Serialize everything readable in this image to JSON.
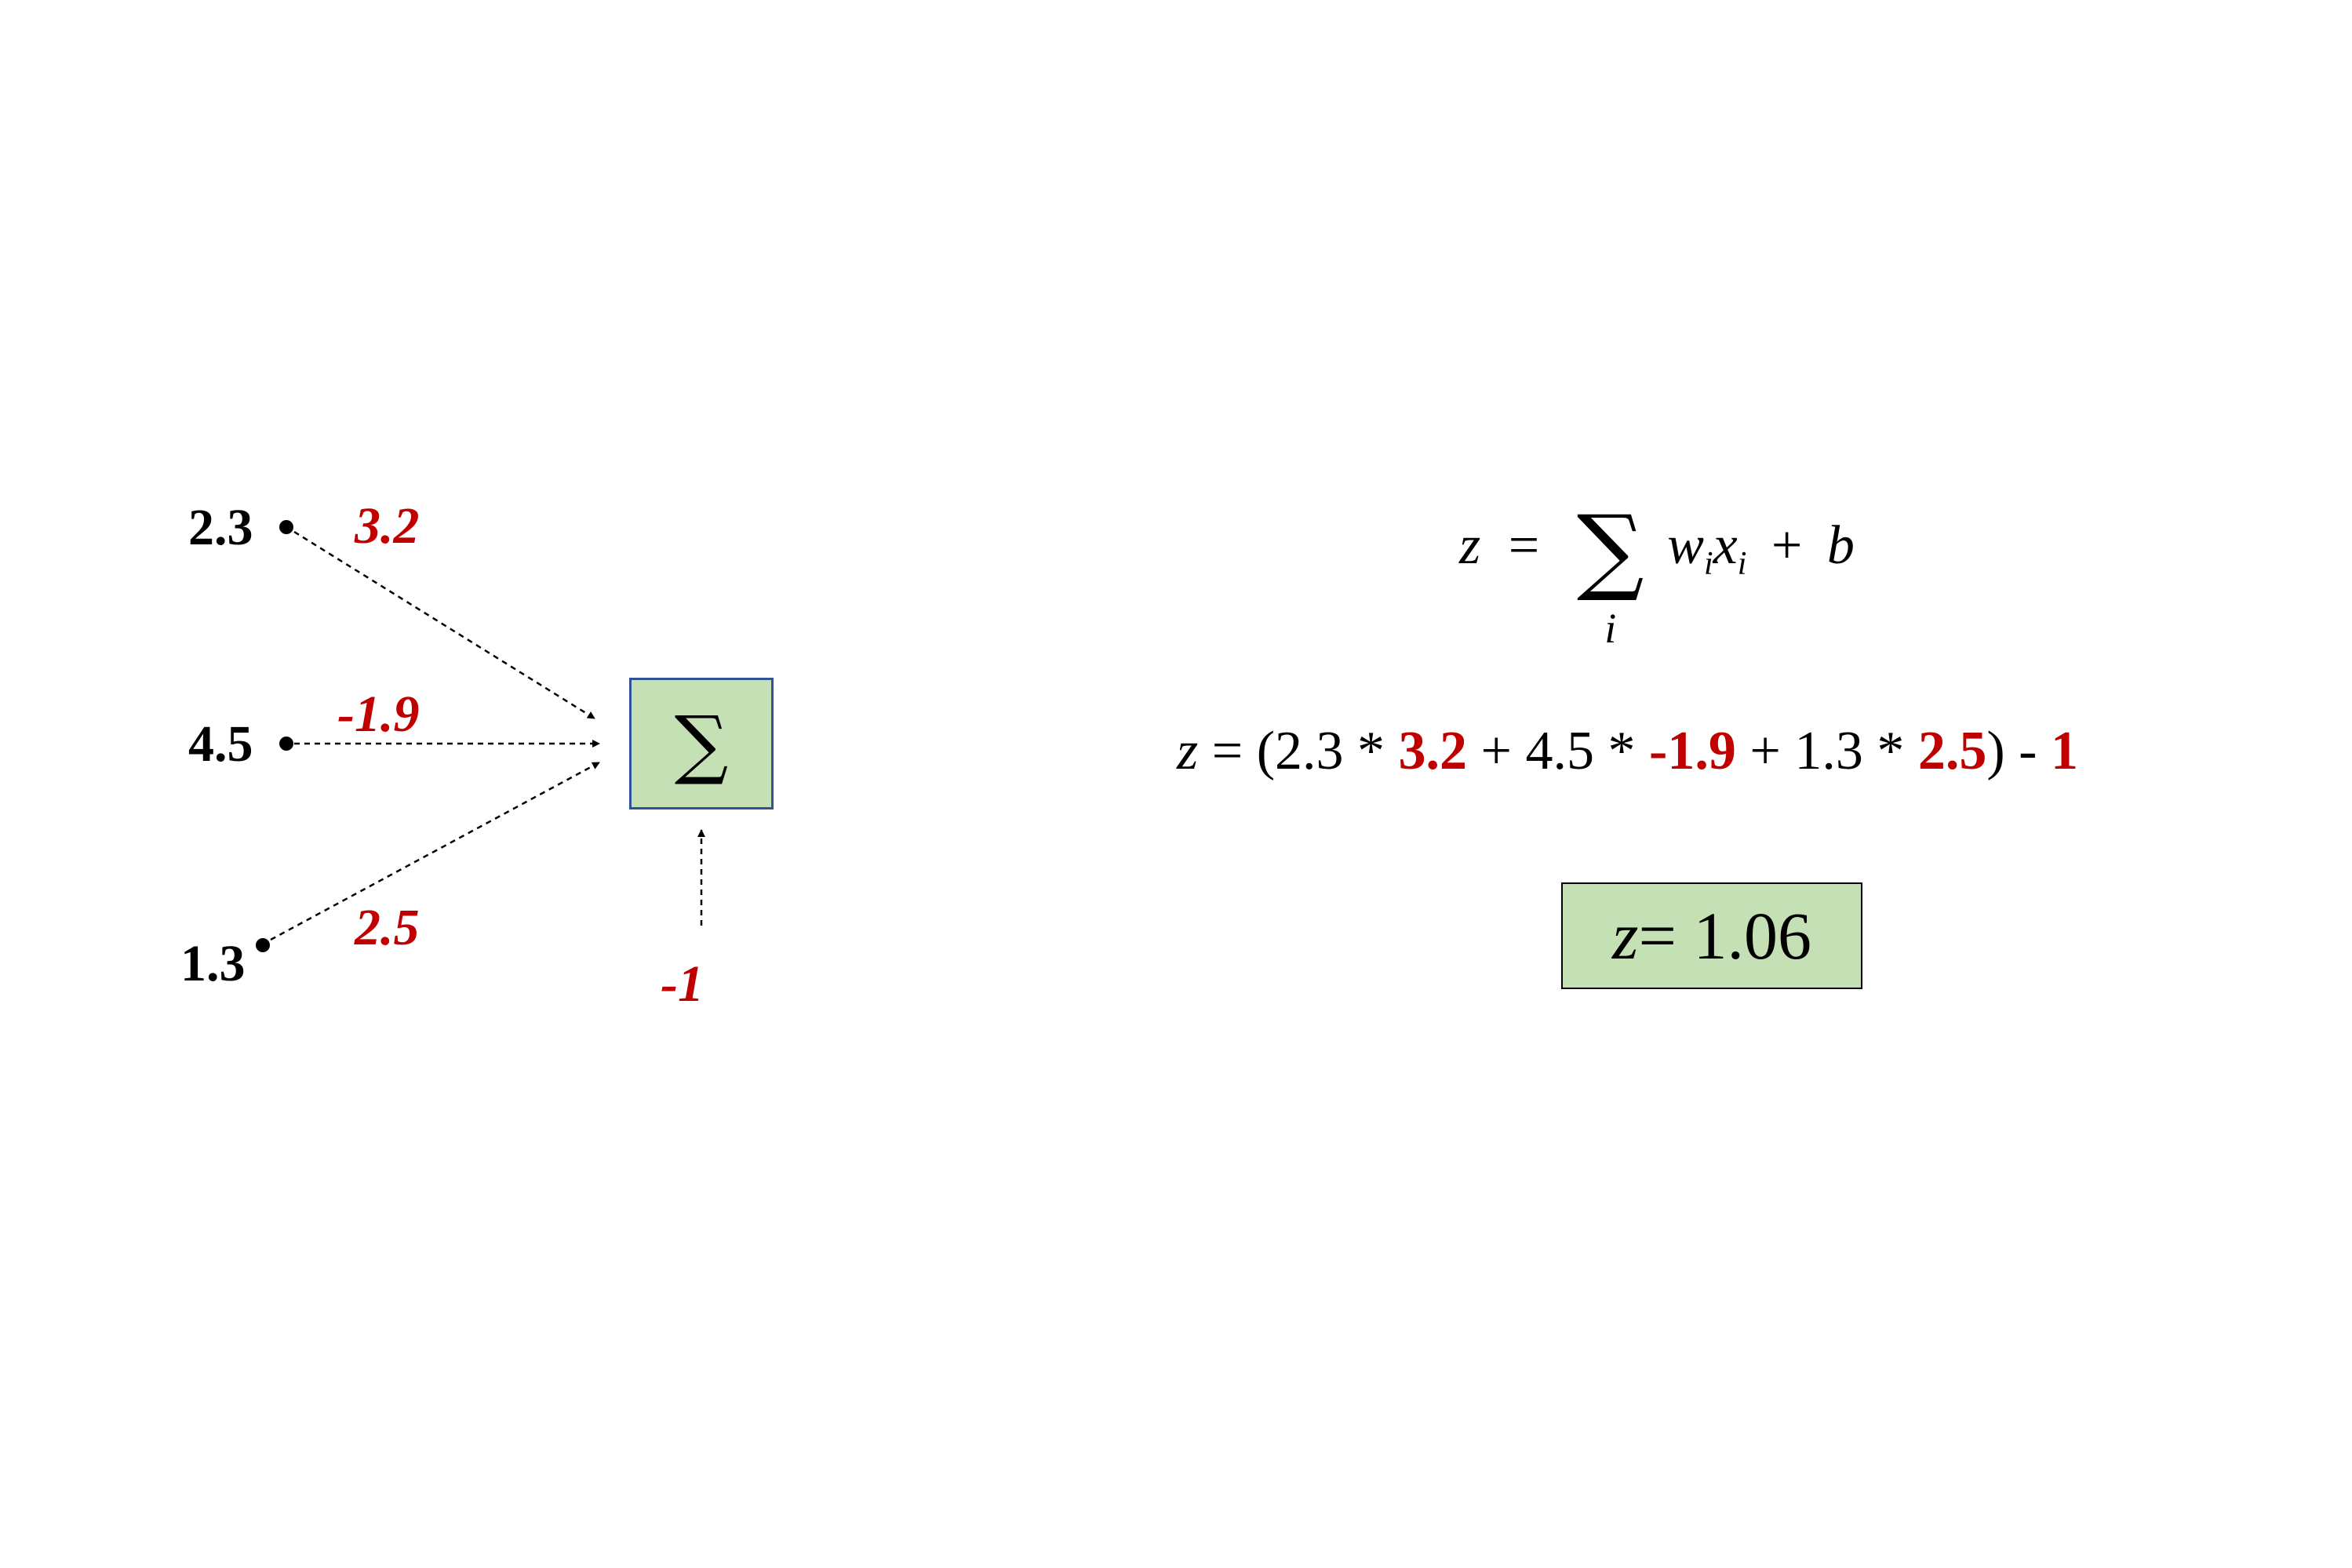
{
  "inputs": [
    {
      "value": "2.3",
      "weight": "3.2"
    },
    {
      "value": "4.5",
      "weight": "-1.9"
    },
    {
      "value": "1.3",
      "weight": "2.5"
    }
  ],
  "bias": "-1",
  "neuron_symbol": "∑",
  "formula": {
    "lhs": "z",
    "eq": "=",
    "sum_symbol": "∑",
    "sum_index": "i",
    "w": "w",
    "x": "x",
    "sub_i": "i",
    "plus": "+",
    "b": "b"
  },
  "equation": {
    "z": "z",
    "open": " = (2.3 * ",
    "w1": "3.2",
    "mid1": " + 4.5 * ",
    "w2": "-1.9",
    "mid2": " +  1.3 * ",
    "w3": "2.5",
    "close": ") - ",
    "b": "1"
  },
  "result": {
    "z": "z",
    "rest": " = 1.06"
  },
  "colors": {
    "weight": "#c00000",
    "neuron_fill": "#c5e0b4",
    "neuron_border": "#2f5597"
  }
}
